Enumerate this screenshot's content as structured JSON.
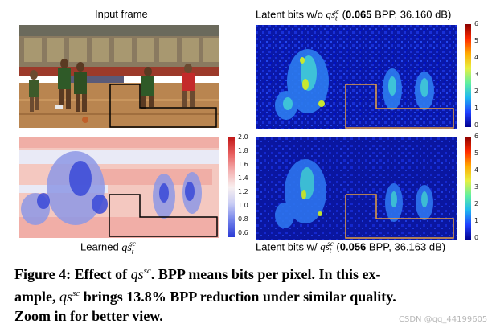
{
  "panels": {
    "input_frame": {
      "title": "Input frame"
    },
    "latent_wo": {
      "title_prefix": "Latent bits w/o ",
      "title_var": "qs",
      "title_sup": "sc",
      "title_sub": "t",
      "title_open": " (",
      "title_bpp": "0.065",
      "title_rest": " BPP, 36.160 dB)"
    },
    "learned": {
      "title_prefix": "Learned ",
      "title_var": "qs",
      "title_sup": "sc",
      "title_sub": "t"
    },
    "latent_w": {
      "title_prefix": "Latent bits w/ ",
      "title_var": "qs",
      "title_sup": "sc",
      "title_sub": "t",
      "title_open": " (",
      "title_bpp": "0.056",
      "title_rest": " BPP, 36.163 dB)"
    }
  },
  "colorbars": {
    "bits_ticks": [
      "6",
      "5",
      "4",
      "3",
      "2",
      "1",
      "0"
    ],
    "scale_ticks": [
      "2.0",
      "1.8",
      "1.6",
      "1.4",
      "1.2",
      "1.0",
      "0.8",
      "0.6"
    ]
  },
  "caption": {
    "label": "Figure 4: Effect of ",
    "var": "qs",
    "sup": "sc",
    "part1": ". BPP means bits per pixel. In this ex-",
    "line2_pre": "ample, ",
    "line2_post": " brings 13.8% BPP reduction under similar quality.",
    "line3": "Zoom in for better view."
  },
  "watermark": "CSDN @qq_44199605",
  "colors": {
    "latent_bg": "#0a1aa0",
    "highlight_box": "#e8a040",
    "scale_high": "#d62020",
    "scale_low": "#2a3ad6"
  }
}
